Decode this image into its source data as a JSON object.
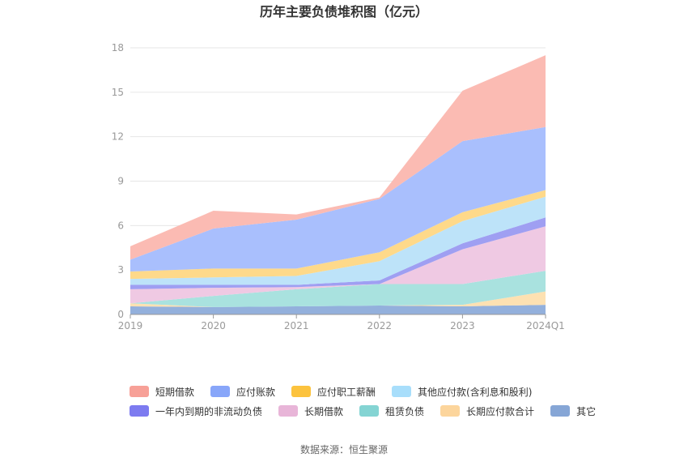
{
  "chart_data": {
    "type": "area",
    "title": "历年主要负债堆积图（亿元）",
    "stacked": true,
    "categories": [
      "2019",
      "2020",
      "2021",
      "2022",
      "2023",
      "2024Q1"
    ],
    "ylim": [
      0,
      18
    ],
    "yticks": [
      "0",
      "3",
      "6",
      "9",
      "12",
      "15",
      "18"
    ],
    "grid": true,
    "legend_position": "bottom",
    "series": [
      {
        "name": "其它",
        "color": "#93b0dc",
        "values": [
          0.55,
          0.5,
          0.55,
          0.6,
          0.55,
          0.65
        ]
      },
      {
        "name": "长期应付款合计",
        "color": "#fde1b2",
        "values": [
          0.2,
          0.0,
          0.0,
          0.0,
          0.1,
          0.9
        ]
      },
      {
        "name": "租赁负债",
        "color": "#a9e2df",
        "values": [
          0.0,
          0.75,
          1.15,
          1.45,
          1.4,
          1.4
        ]
      },
      {
        "name": "长期借款",
        "color": "#efc9e3",
        "values": [
          0.95,
          0.55,
          0.15,
          0.0,
          2.35,
          3.0
        ]
      },
      {
        "name": "一年内到期的非流动负债",
        "color": "#9f9ff2",
        "values": [
          0.3,
          0.2,
          0.15,
          0.25,
          0.4,
          0.6
        ]
      },
      {
        "name": "其他应付款(含利息和股利)",
        "color": "#bde3f9",
        "values": [
          0.4,
          0.5,
          0.6,
          1.3,
          1.5,
          1.4
        ]
      },
      {
        "name": "应付职工薪酬",
        "color": "#fed98a",
        "values": [
          0.5,
          0.6,
          0.5,
          0.6,
          0.6,
          0.45
        ]
      },
      {
        "name": "应付账款",
        "color": "#a9bffd",
        "values": [
          0.8,
          2.7,
          3.3,
          3.6,
          4.8,
          4.25
        ]
      },
      {
        "name": "短期借款",
        "color": "#fbbbb3",
        "values": [
          0.9,
          1.2,
          0.35,
          0.1,
          3.4,
          4.85
        ]
      }
    ]
  },
  "legend": {
    "row1": [
      {
        "name": "短期借款",
        "color": "#f7a097"
      },
      {
        "name": "应付账款",
        "color": "#88a6f9"
      },
      {
        "name": "应付职工薪酬",
        "color": "#fcc33e"
      },
      {
        "name": "其他应付款(含利息和股利)",
        "color": "#a8defb"
      }
    ],
    "row2": [
      {
        "name": "一年内到期的非流动负债",
        "color": "#7d7bf0"
      },
      {
        "name": "长期借款",
        "color": "#e8b5d8"
      },
      {
        "name": "租赁负债",
        "color": "#84d4d3"
      },
      {
        "name": "长期应付款合计",
        "color": "#fcd59c"
      },
      {
        "name": "其它",
        "color": "#86a6d6"
      }
    ]
  },
  "source": "数据来源：恒生聚源"
}
